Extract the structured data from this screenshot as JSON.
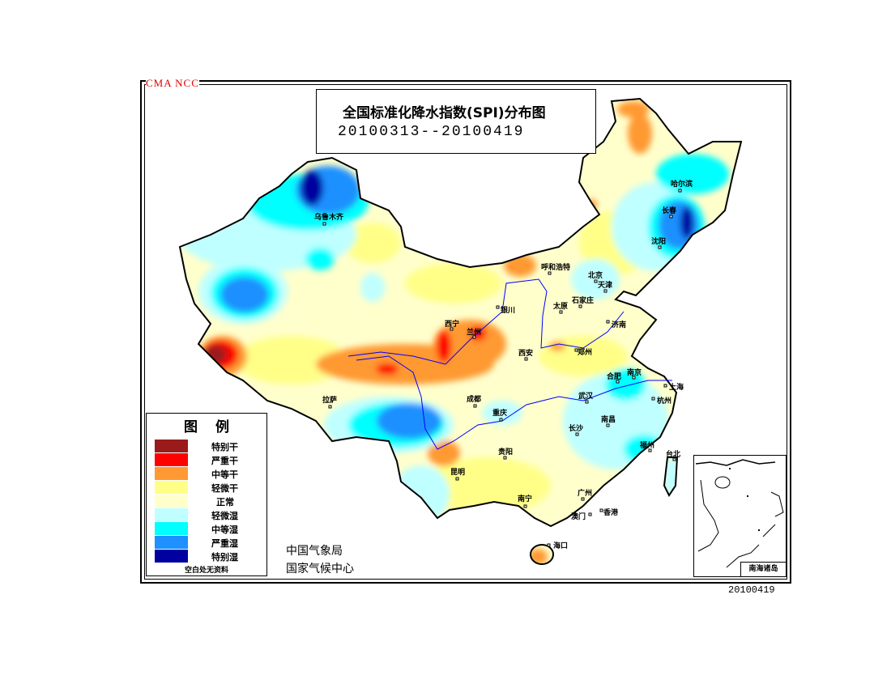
{
  "agency_tag": "CMA NCC",
  "title": "全国标准化降水指数(SPI)分布图",
  "period": "20100313--20100419",
  "legend": {
    "title": "图例",
    "items": [
      {
        "label": "特别干",
        "color": "#9B1B1B"
      },
      {
        "label": "严重干",
        "color": "#FF0000"
      },
      {
        "label": "中等干",
        "color": "#FF9933"
      },
      {
        "label": "轻微干",
        "color": "#FFFF88"
      },
      {
        "label": "正常",
        "color": "#FFFFCC"
      },
      {
        "label": "轻微湿",
        "color": "#BFFFFF"
      },
      {
        "label": "中等湿",
        "color": "#00FFFF"
      },
      {
        "label": "严重湿",
        "color": "#1E90FF"
      },
      {
        "label": "特别湿",
        "color": "#0000A0"
      }
    ],
    "note": "空白处无资料"
  },
  "organization": {
    "line1": "中国气象局",
    "line2": "国家气候中心"
  },
  "inset_label": "南海诸岛",
  "date_stamp": "20100419",
  "cities": [
    "乌鲁木齐",
    "哈尔滨",
    "长春",
    "沈阳",
    "呼和浩特",
    "北京",
    "天津",
    "石家庄",
    "太原",
    "济南",
    "银川",
    "西宁",
    "兰州",
    "西安",
    "郑州",
    "合肥",
    "南京",
    "上海",
    "杭州",
    "武汉",
    "南昌",
    "长沙",
    "福州",
    "台北",
    "拉萨",
    "成都",
    "重庆",
    "贵阳",
    "昆明",
    "南宁",
    "广州",
    "香港",
    "澳门",
    "海口"
  ]
}
